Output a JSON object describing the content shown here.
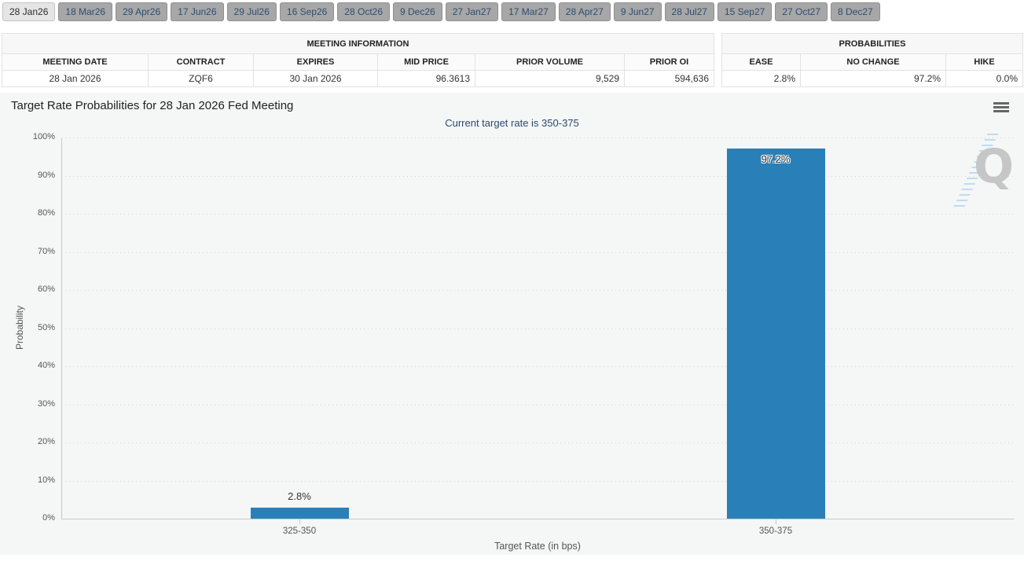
{
  "tabs": {
    "items": [
      {
        "label": "28 Jan26",
        "selected": true
      },
      {
        "label": "18 Mar26",
        "selected": false
      },
      {
        "label": "29 Apr26",
        "selected": false
      },
      {
        "label": "17 Jun26",
        "selected": false
      },
      {
        "label": "29 Jul26",
        "selected": false
      },
      {
        "label": "16 Sep26",
        "selected": false
      },
      {
        "label": "28 Oct26",
        "selected": false
      },
      {
        "label": "9 Dec26",
        "selected": false
      },
      {
        "label": "27 Jan27",
        "selected": false
      },
      {
        "label": "17 Mar27",
        "selected": false
      },
      {
        "label": "28 Apr27",
        "selected": false
      },
      {
        "label": "9 Jun27",
        "selected": false
      },
      {
        "label": "28 Jul27",
        "selected": false
      },
      {
        "label": "15 Sep27",
        "selected": false
      },
      {
        "label": "27 Oct27",
        "selected": false
      },
      {
        "label": "8 Dec27",
        "selected": false
      }
    ]
  },
  "meeting_info_table": {
    "title": "MEETING INFORMATION",
    "columns": [
      "MEETING DATE",
      "CONTRACT",
      "EXPIRES",
      "MID PRICE",
      "PRIOR VOLUME",
      "PRIOR OI"
    ],
    "row": [
      "28 Jan 2026",
      "ZQF6",
      "30 Jan 2026",
      "96.3613",
      "9,529",
      "594,636"
    ]
  },
  "probabilities_table": {
    "title": "PROBABILITIES",
    "columns": [
      "EASE",
      "NO CHANGE",
      "HIKE"
    ],
    "row": [
      "2.8%",
      "97.2%",
      "0.0%"
    ]
  },
  "chart": {
    "title": "Target Rate Probabilities for 28 Jan 2026 Fed Meeting",
    "subtitle": "Current target rate is 350-375",
    "menu_icon": "hamburger-menu-icon",
    "watermark_letter": "Q"
  },
  "chart_data": {
    "type": "bar",
    "title": "Target Rate Probabilities for 28 Jan 2026 Fed Meeting",
    "subtitle": "Current target rate is 350-375",
    "categories": [
      "325-350",
      "350-375"
    ],
    "values": [
      2.8,
      97.2
    ],
    "value_labels": [
      "2.8%",
      "97.2%"
    ],
    "xlabel": "Target Rate (in bps)",
    "ylabel": "Probability",
    "ylim": [
      0,
      100
    ],
    "ytick_step": 10,
    "ytick_suffix": "%",
    "grid": "dotted horizontal gridlines every 10%",
    "legend": "none",
    "bar_color": "#2980b9"
  },
  "colors": {
    "bar": "#2980b9",
    "subtitle_text": "#2b4a6e",
    "tab_unselected_bg": "#a7a7a7",
    "tab_selected_bg": "#e5e5e5",
    "tab_text": "#2d4d71",
    "chart_panel_bg": "#f5f6f6",
    "grid_dot": "#d6d6d6",
    "axis_line": "#c9c9c9"
  }
}
